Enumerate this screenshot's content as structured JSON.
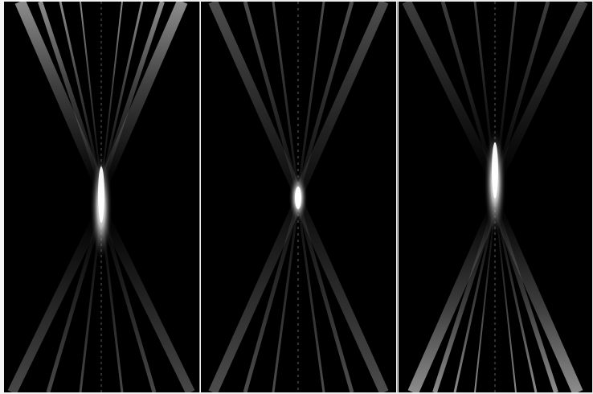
{
  "figure": {
    "panels": [
      {
        "name": "panel-top-focus",
        "focus_y_fraction": 0.48,
        "bias": "top"
      },
      {
        "name": "panel-center-focus",
        "focus_y_fraction": 0.48,
        "bias": "center"
      },
      {
        "name": "panel-bottom-focus",
        "focus_y_fraction": 0.48,
        "bias": "bottom"
      }
    ],
    "colors": {
      "background": "#000000",
      "beam": "#ffffff",
      "divider": "#8a8a8a"
    }
  }
}
